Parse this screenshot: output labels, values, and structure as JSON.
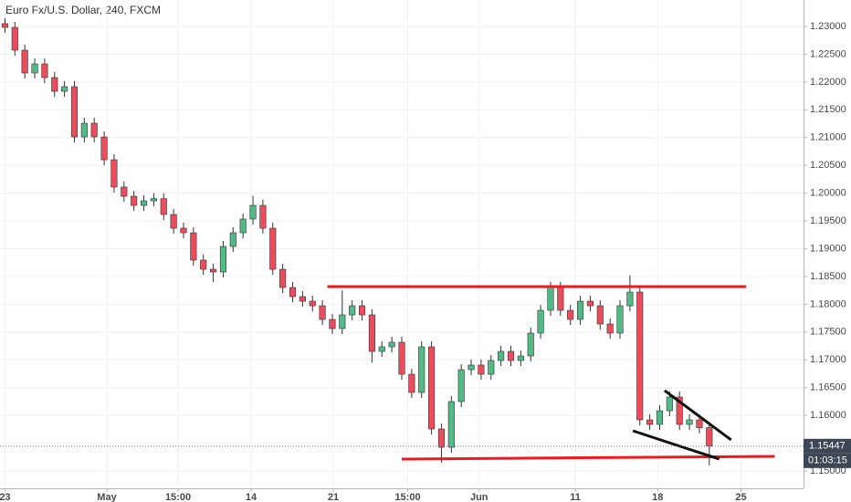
{
  "chart_data": {
    "type": "candlestick",
    "title": "Euro Fx/U.S. Dollar, 240, FXCM",
    "up_color": "#53b987",
    "down_color": "#eb4d5c",
    "grid": true,
    "xlim": [
      -0.5,
      80.5
    ],
    "ylim": [
      1.14688,
      1.23476
    ],
    "xticks": [
      {
        "value": 0,
        "label": "23"
      },
      {
        "value": 10.27,
        "label": "May"
      },
      {
        "value": 17.45,
        "label": "15:00"
      },
      {
        "value": 24.81,
        "label": "14"
      },
      {
        "value": 33.1,
        "label": "21"
      },
      {
        "value": 40.6,
        "label": "15:00"
      },
      {
        "value": 47.8,
        "label": "Jun"
      },
      {
        "value": 57.5,
        "label": "11"
      },
      {
        "value": 65.8,
        "label": "18"
      },
      {
        "value": 74.2,
        "label": "25"
      }
    ],
    "yticks": [
      {
        "value": 1.15,
        "label": "1.15000"
      },
      {
        "value": 1.155,
        "label": "1.15500"
      },
      {
        "value": 1.16,
        "label": "1.16000"
      },
      {
        "value": 1.165,
        "label": "1.16500"
      },
      {
        "value": 1.17,
        "label": "1.17000"
      },
      {
        "value": 1.175,
        "label": "1.17500"
      },
      {
        "value": 1.18,
        "label": "1.18000"
      },
      {
        "value": 1.185,
        "label": "1.18500"
      },
      {
        "value": 1.19,
        "label": "1.19000"
      },
      {
        "value": 1.195,
        "label": "1.19500"
      },
      {
        "value": 1.2,
        "label": "1.20000"
      },
      {
        "value": 1.205,
        "label": "1.20500"
      },
      {
        "value": 1.21,
        "label": "1.21000"
      },
      {
        "value": 1.215,
        "label": "1.21500"
      },
      {
        "value": 1.22,
        "label": "1.22000"
      },
      {
        "value": 1.225,
        "label": "1.22500"
      },
      {
        "value": 1.23,
        "label": "1.23000"
      }
    ],
    "open": [
      1.2305,
      1.22983,
      1.22573,
      1.22162,
      1.22326,
      1.2208,
      1.21833,
      1.21916,
      1.21012,
      1.21258,
      1.21012,
      1.20601,
      1.20109,
      1.19944,
      1.1978,
      1.19862,
      1.199,
      1.19616,
      1.19369,
      1.19287,
      1.18795,
      1.1863,
      1.18581,
      1.19041,
      1.19287,
      1.19534,
      1.1978,
      1.19369,
      1.1863,
      1.18302,
      1.18138,
      1.18055,
      1.17973,
      1.17727,
      1.17563,
      1.17809,
      1.17973,
      1.17809,
      1.17152,
      1.17234,
      1.17316,
      1.16741,
      1.16413,
      1.17234,
      1.15756,
      1.15427,
      1.16249,
      1.16823,
      1.16906,
      1.16741,
      1.16988,
      1.17152,
      1.16988,
      1.1707,
      1.17481,
      1.17891,
      1.18302,
      1.17891,
      1.17727,
      1.18055,
      1.17973,
      1.17645,
      1.17481,
      1.17973,
      1.1822,
      1.1592,
      1.15838,
      1.16084,
      1.16331,
      1.15838,
      1.1592,
      1.1578
    ],
    "high": [
      1.2315,
      1.23083,
      1.22673,
      1.22426,
      1.22426,
      1.2218,
      1.22016,
      1.22016,
      1.21358,
      1.21358,
      1.21112,
      1.20701,
      1.20209,
      1.20044,
      1.19962,
      1.2,
      1.2,
      1.19716,
      1.19469,
      1.19387,
      1.18895,
      1.1873,
      1.19141,
      1.19387,
      1.19634,
      1.1995,
      1.1988,
      1.19469,
      1.1873,
      1.18402,
      1.18238,
      1.18155,
      1.18073,
      1.17827,
      1.1825,
      1.18073,
      1.18073,
      1.17909,
      1.17334,
      1.17416,
      1.17416,
      1.16841,
      1.17334,
      1.17334,
      1.15856,
      1.16349,
      1.16923,
      1.17006,
      1.17006,
      1.17088,
      1.17252,
      1.17252,
      1.1717,
      1.17581,
      1.17991,
      1.18402,
      1.18402,
      1.17991,
      1.18155,
      1.18155,
      1.18073,
      1.17745,
      1.18073,
      1.1852,
      1.1832,
      1.1602,
      1.16184,
      1.16431,
      1.16431,
      1.1602,
      1.1602,
      1.1588
    ],
    "low": [
      1.22883,
      1.22473,
      1.22062,
      1.22062,
      1.2198,
      1.21733,
      1.21733,
      1.20912,
      1.20912,
      1.20912,
      1.20501,
      1.20009,
      1.19844,
      1.1968,
      1.1968,
      1.19762,
      1.19516,
      1.19269,
      1.19187,
      1.18695,
      1.1853,
      1.184,
      1.18481,
      1.18941,
      1.19187,
      1.19434,
      1.19269,
      1.1853,
      1.18202,
      1.18038,
      1.17955,
      1.17873,
      1.17627,
      1.17463,
      1.17463,
      1.17709,
      1.17709,
      1.1695,
      1.17052,
      1.17134,
      1.16641,
      1.16313,
      1.16313,
      1.15656,
      1.1515,
      1.15327,
      1.16149,
      1.16723,
      1.16641,
      1.16641,
      1.16888,
      1.16888,
      1.16888,
      1.1697,
      1.17381,
      1.17791,
      1.17791,
      1.17627,
      1.17627,
      1.17873,
      1.17545,
      1.17381,
      1.17381,
      1.17873,
      1.1582,
      1.15738,
      1.15738,
      1.15984,
      1.15738,
      1.15738,
      1.1568,
      1.151
    ],
    "close": [
      1.22983,
      1.22573,
      1.22162,
      1.22326,
      1.2208,
      1.21833,
      1.21916,
      1.21012,
      1.21258,
      1.21012,
      1.20601,
      1.20109,
      1.19944,
      1.1978,
      1.19862,
      1.199,
      1.19616,
      1.19369,
      1.19287,
      1.18795,
      1.1863,
      1.18581,
      1.19041,
      1.19287,
      1.19534,
      1.1978,
      1.19369,
      1.1863,
      1.18302,
      1.18138,
      1.18055,
      1.17973,
      1.17727,
      1.17563,
      1.17809,
      1.17973,
      1.17809,
      1.17152,
      1.17234,
      1.17316,
      1.16741,
      1.16413,
      1.17234,
      1.15756,
      1.15427,
      1.16249,
      1.16823,
      1.16906,
      1.16741,
      1.16988,
      1.17152,
      1.16988,
      1.1707,
      1.17481,
      1.17891,
      1.18302,
      1.17891,
      1.17727,
      1.18055,
      1.17973,
      1.17645,
      1.17481,
      1.17973,
      1.1822,
      1.1592,
      1.15838,
      1.16084,
      1.16331,
      1.15838,
      1.1592,
      1.1578,
      1.15447
    ],
    "drawings": [
      {
        "color": "#f0171d",
        "x": [
          32.5,
          74.7
        ],
        "y": [
          1.18318,
          1.18318
        ]
      },
      {
        "color": "#f0171d",
        "x": [
          40,
          77.6
        ],
        "y": [
          1.15214,
          1.15263
        ]
      },
      {
        "color": "#111111",
        "x": [
          66.5,
          73.2
        ],
        "y": [
          1.16446,
          1.15559
        ]
      },
      {
        "color": "#111111",
        "x": [
          63.3,
          72
        ],
        "y": [
          1.15723,
          1.15214
        ]
      }
    ],
    "last_price": 1.15447,
    "countdown": "01:03:15"
  }
}
